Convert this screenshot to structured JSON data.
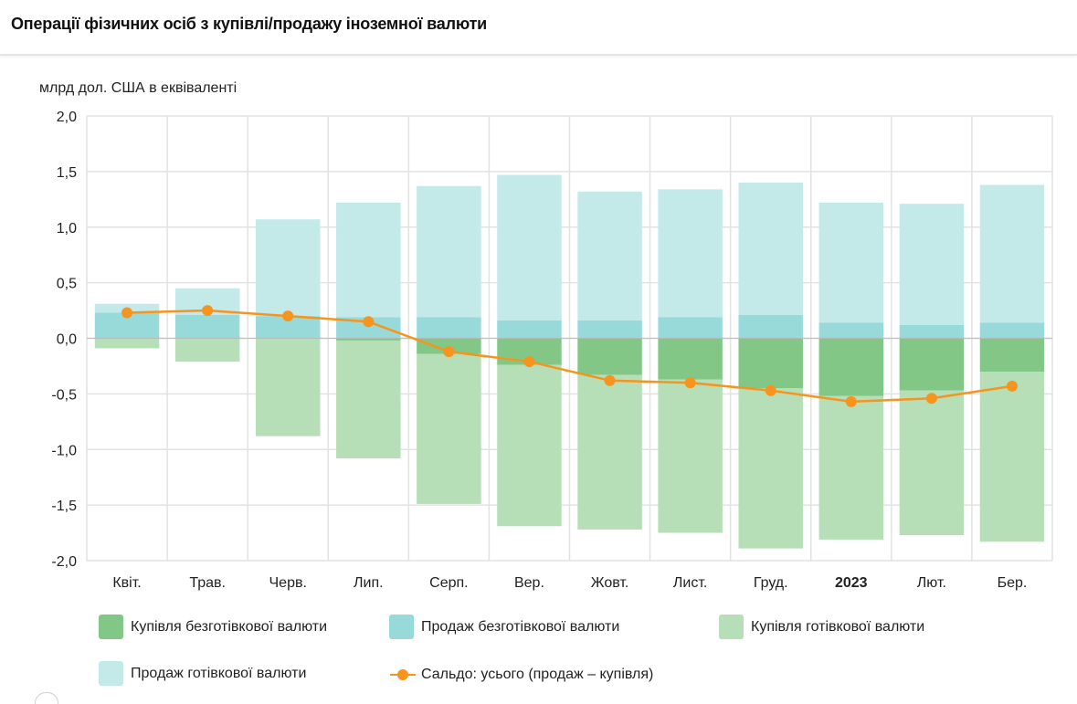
{
  "header": {
    "title": "Операції фізичних осіб з купівлі/продажу іноземної валюти"
  },
  "chart_data": {
    "type": "bar",
    "stacked": true,
    "title": "Операції фізичних осіб з купівлі/продажу іноземної валюти",
    "ylabel": "млрд дол. США в еквіваленті",
    "xlabel": "",
    "ylim": [
      -2.0,
      2.0
    ],
    "yticks": [
      2.0,
      1.5,
      1.0,
      0.5,
      0.0,
      -0.5,
      -1.0,
      -1.5,
      -2.0
    ],
    "ytick_labels": [
      "2,0",
      "1,5",
      "1,0",
      "0,5",
      "0,0",
      "-0,5",
      "-1,0",
      "-1,5",
      "-2,0"
    ],
    "grid": true,
    "legend_position": "bottom",
    "categories": [
      "Квіт.",
      "Трав.",
      "Черв.",
      "Лип.",
      "Серп.",
      "Вер.",
      "Жовт.",
      "Лист.",
      "Груд.",
      "2023",
      "Лют.",
      "Бер."
    ],
    "bold_categories": [
      "2023"
    ],
    "series": [
      {
        "name": "Купівля безготівкової валюти",
        "kind": "bar",
        "color": "#82c785",
        "values": [
          0.0,
          0.0,
          0.0,
          -0.02,
          -0.14,
          -0.24,
          -0.33,
          -0.37,
          -0.45,
          -0.52,
          -0.47,
          -0.3
        ]
      },
      {
        "name": "Продаж безготівкової валюти",
        "kind": "bar",
        "color": "#97dad9",
        "values": [
          0.23,
          0.21,
          0.2,
          0.19,
          0.19,
          0.16,
          0.16,
          0.19,
          0.21,
          0.14,
          0.12,
          0.14
        ]
      },
      {
        "name": "Купівля готівкової валюти",
        "kind": "bar",
        "color": "#b6dfb8",
        "values": [
          -0.09,
          -0.21,
          -0.88,
          -1.06,
          -1.35,
          -1.45,
          -1.39,
          -1.38,
          -1.44,
          -1.29,
          -1.3,
          -1.53
        ]
      },
      {
        "name": "Продаж готівкової валюти",
        "kind": "bar",
        "color": "#c3e9e9",
        "values": [
          0.08,
          0.24,
          0.87,
          1.03,
          1.18,
          1.31,
          1.16,
          1.15,
          1.19,
          1.08,
          1.09,
          1.24
        ]
      },
      {
        "name": "Сальдо: усього (продаж – купівля)",
        "kind": "line",
        "color": "#f7941d",
        "values": [
          0.23,
          0.25,
          0.2,
          0.15,
          -0.12,
          -0.21,
          -0.38,
          -0.4,
          -0.47,
          -0.57,
          -0.54,
          -0.43
        ]
      }
    ]
  }
}
